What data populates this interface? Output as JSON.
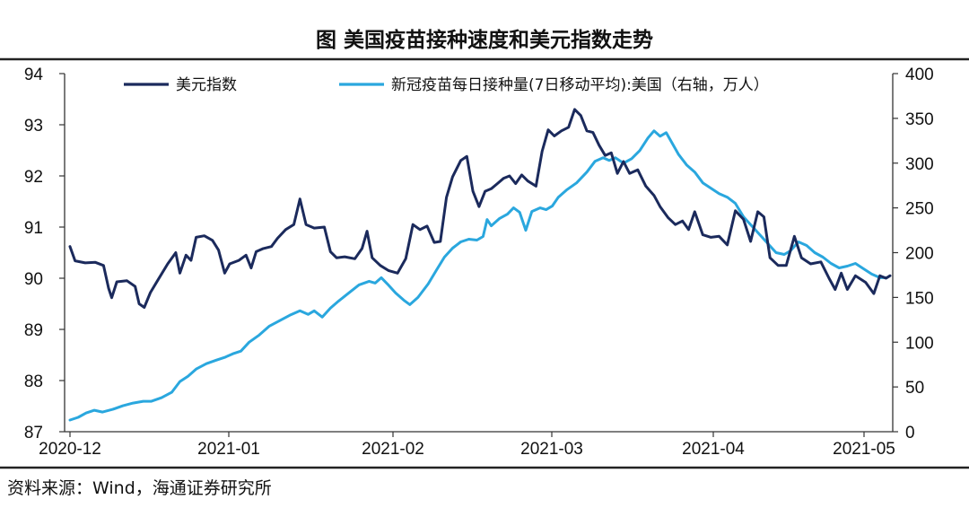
{
  "page": {
    "title": "图  美国疫苗接种速度和美元指数走势",
    "source": "资料来源：Wind，海通证券研究所"
  },
  "chart_data": {
    "type": "line",
    "title": "图  美国疫苗接种速度和美元指数走势",
    "x_tick_labels": [
      "2020-12",
      "2021-01",
      "2021-02",
      "2021-03",
      "2021-04",
      "2021-05"
    ],
    "left_axis": {
      "ylim": [
        87,
        94
      ],
      "ticks": [
        87,
        88,
        89,
        90,
        91,
        92,
        93,
        94
      ]
    },
    "right_axis": {
      "ylim": [
        0,
        400
      ],
      "ticks": [
        0,
        50,
        100,
        150,
        200,
        250,
        300,
        350,
        400
      ]
    },
    "grid": false,
    "legend_position": "top",
    "series": [
      {
        "name": "美元指数",
        "axis": "left",
        "color": "#1b2a5c",
        "points": [
          [
            0,
            90.62
          ],
          [
            0.5,
            90.34
          ],
          [
            1.5,
            90.3
          ],
          [
            2.5,
            90.31
          ],
          [
            3.3,
            90.25
          ],
          [
            3.8,
            89.8
          ],
          [
            4.1,
            89.62
          ],
          [
            4.6,
            89.93
          ],
          [
            5.6,
            89.95
          ],
          [
            6.4,
            89.84
          ],
          [
            6.8,
            89.5
          ],
          [
            7.3,
            89.43
          ],
          [
            7.9,
            89.72
          ],
          [
            8.6,
            89.95
          ],
          [
            9.6,
            90.28
          ],
          [
            10.4,
            90.5
          ],
          [
            10.8,
            90.1
          ],
          [
            11.4,
            90.45
          ],
          [
            11.9,
            90.35
          ],
          [
            12.4,
            90.8
          ],
          [
            13.2,
            90.83
          ],
          [
            14.0,
            90.74
          ],
          [
            14.6,
            90.55
          ],
          [
            15.2,
            90.1
          ],
          [
            15.7,
            90.28
          ],
          [
            16.6,
            90.35
          ],
          [
            17.3,
            90.45
          ],
          [
            17.8,
            90.2
          ],
          [
            18.3,
            90.52
          ],
          [
            19.0,
            90.58
          ],
          [
            19.8,
            90.62
          ],
          [
            20.4,
            90.78
          ],
          [
            21.2,
            90.95
          ],
          [
            22.0,
            91.05
          ],
          [
            22.6,
            91.55
          ],
          [
            23.2,
            91.05
          ],
          [
            24.0,
            90.98
          ],
          [
            25.0,
            91.0
          ],
          [
            25.6,
            90.52
          ],
          [
            26.2,
            90.4
          ],
          [
            27.0,
            90.42
          ],
          [
            28.0,
            90.38
          ],
          [
            28.7,
            90.58
          ],
          [
            29.2,
            90.92
          ],
          [
            29.7,
            90.4
          ],
          [
            30.5,
            90.25
          ],
          [
            31.3,
            90.15
          ],
          [
            32.2,
            90.1
          ],
          [
            33.0,
            90.38
          ],
          [
            33.7,
            91.05
          ],
          [
            34.4,
            90.95
          ],
          [
            35.1,
            91.02
          ],
          [
            35.8,
            90.7
          ],
          [
            36.4,
            90.72
          ],
          [
            37.0,
            91.58
          ],
          [
            37.6,
            91.98
          ],
          [
            38.4,
            92.3
          ],
          [
            39.0,
            92.38
          ],
          [
            39.6,
            91.7
          ],
          [
            40.2,
            91.4
          ],
          [
            40.8,
            91.7
          ],
          [
            41.4,
            91.75
          ],
          [
            42.0,
            91.85
          ],
          [
            42.6,
            91.95
          ],
          [
            43.2,
            92.0
          ],
          [
            43.8,
            91.85
          ],
          [
            44.4,
            92.02
          ],
          [
            45.0,
            91.9
          ],
          [
            45.8,
            91.8
          ],
          [
            46.4,
            92.48
          ],
          [
            47.0,
            92.9
          ],
          [
            47.6,
            92.78
          ],
          [
            48.3,
            92.88
          ],
          [
            49.0,
            92.95
          ],
          [
            49.6,
            93.3
          ],
          [
            50.2,
            93.18
          ],
          [
            50.8,
            92.88
          ],
          [
            51.4,
            92.85
          ],
          [
            52.0,
            92.6
          ],
          [
            52.6,
            92.4
          ],
          [
            53.2,
            92.45
          ],
          [
            53.8,
            92.05
          ],
          [
            54.4,
            92.28
          ],
          [
            55.0,
            92.05
          ],
          [
            55.8,
            92.12
          ],
          [
            56.6,
            91.8
          ],
          [
            57.4,
            91.62
          ],
          [
            58.0,
            91.4
          ],
          [
            58.8,
            91.18
          ],
          [
            59.5,
            91.05
          ],
          [
            60.2,
            91.12
          ],
          [
            60.8,
            90.95
          ],
          [
            61.4,
            91.3
          ],
          [
            62.2,
            90.85
          ],
          [
            63.0,
            90.8
          ],
          [
            63.8,
            90.82
          ],
          [
            64.6,
            90.65
          ],
          [
            65.4,
            91.32
          ],
          [
            66.2,
            91.15
          ],
          [
            66.9,
            90.72
          ],
          [
            67.6,
            91.3
          ],
          [
            68.2,
            91.2
          ],
          [
            68.8,
            90.4
          ],
          [
            69.6,
            90.25
          ],
          [
            70.4,
            90.25
          ],
          [
            71.2,
            90.82
          ],
          [
            71.9,
            90.4
          ],
          [
            72.8,
            90.28
          ],
          [
            73.8,
            90.32
          ],
          [
            74.6,
            90.0
          ],
          [
            75.2,
            89.78
          ],
          [
            75.8,
            90.1
          ],
          [
            76.4,
            89.78
          ],
          [
            77.2,
            90.05
          ],
          [
            78.2,
            89.92
          ],
          [
            79.0,
            89.7
          ],
          [
            79.6,
            90.05
          ],
          [
            80.2,
            90.0
          ],
          [
            80.6,
            90.05
          ]
        ]
      },
      {
        "name": "新冠疫苗每日接种量(7日移动平均):美国（右轴，万人）",
        "axis": "right",
        "color": "#2aa7de",
        "points": [
          [
            0,
            13
          ],
          [
            0.8,
            16
          ],
          [
            1.6,
            21
          ],
          [
            2.4,
            24
          ],
          [
            3.2,
            22
          ],
          [
            4.2,
            25
          ],
          [
            5.2,
            29
          ],
          [
            6.2,
            32
          ],
          [
            7.2,
            34
          ],
          [
            8.0,
            34
          ],
          [
            9.0,
            38
          ],
          [
            10.0,
            44
          ],
          [
            10.8,
            56
          ],
          [
            11.6,
            62
          ],
          [
            12.4,
            70
          ],
          [
            13.4,
            76
          ],
          [
            14.4,
            80
          ],
          [
            15.2,
            83
          ],
          [
            16.0,
            87
          ],
          [
            16.8,
            90
          ],
          [
            17.6,
            100
          ],
          [
            18.6,
            108
          ],
          [
            19.6,
            118
          ],
          [
            20.6,
            124
          ],
          [
            21.6,
            130
          ],
          [
            22.6,
            135
          ],
          [
            23.4,
            131
          ],
          [
            24.0,
            135
          ],
          [
            24.8,
            128
          ],
          [
            25.6,
            138
          ],
          [
            26.4,
            146
          ],
          [
            27.4,
            155
          ],
          [
            28.4,
            164
          ],
          [
            29.4,
            168
          ],
          [
            30.0,
            166
          ],
          [
            30.6,
            172
          ],
          [
            31.2,
            165
          ],
          [
            32.0,
            155
          ],
          [
            32.8,
            147
          ],
          [
            33.4,
            142
          ],
          [
            34.2,
            150
          ],
          [
            35.2,
            165
          ],
          [
            36.0,
            180
          ],
          [
            36.8,
            195
          ],
          [
            37.6,
            205
          ],
          [
            38.4,
            212
          ],
          [
            39.2,
            215
          ],
          [
            40.0,
            214
          ],
          [
            40.6,
            218
          ],
          [
            41.0,
            237
          ],
          [
            41.4,
            230
          ],
          [
            42.2,
            238
          ],
          [
            43.0,
            243
          ],
          [
            43.6,
            250
          ],
          [
            44.2,
            245
          ],
          [
            44.8,
            225
          ],
          [
            45.4,
            246
          ],
          [
            46.2,
            250
          ],
          [
            46.8,
            248
          ],
          [
            47.4,
            252
          ],
          [
            48.0,
            262
          ],
          [
            48.8,
            270
          ],
          [
            49.8,
            278
          ],
          [
            50.8,
            290
          ],
          [
            51.6,
            302
          ],
          [
            52.4,
            306
          ],
          [
            53.0,
            303
          ],
          [
            53.6,
            306
          ],
          [
            54.4,
            300
          ],
          [
            55.2,
            305
          ],
          [
            56.0,
            314
          ],
          [
            56.8,
            328
          ],
          [
            57.4,
            336
          ],
          [
            58.0,
            330
          ],
          [
            58.6,
            334
          ],
          [
            59.2,
            322
          ],
          [
            59.8,
            310
          ],
          [
            60.6,
            298
          ],
          [
            61.4,
            290
          ],
          [
            62.2,
            278
          ],
          [
            63.0,
            272
          ],
          [
            63.8,
            266
          ],
          [
            64.6,
            262
          ],
          [
            65.4,
            255
          ],
          [
            66.2,
            240
          ],
          [
            67.0,
            230
          ],
          [
            67.8,
            220
          ],
          [
            68.6,
            210
          ],
          [
            69.4,
            200
          ],
          [
            70.2,
            198
          ],
          [
            70.8,
            202
          ],
          [
            71.6,
            212
          ],
          [
            72.4,
            208
          ],
          [
            73.2,
            200
          ],
          [
            74.0,
            195
          ],
          [
            74.8,
            188
          ],
          [
            75.6,
            183
          ],
          [
            76.4,
            185
          ],
          [
            77.2,
            188
          ],
          [
            78.0,
            182
          ],
          [
            78.8,
            176
          ],
          [
            79.6,
            172
          ],
          [
            80.2,
            172
          ]
        ]
      }
    ]
  }
}
